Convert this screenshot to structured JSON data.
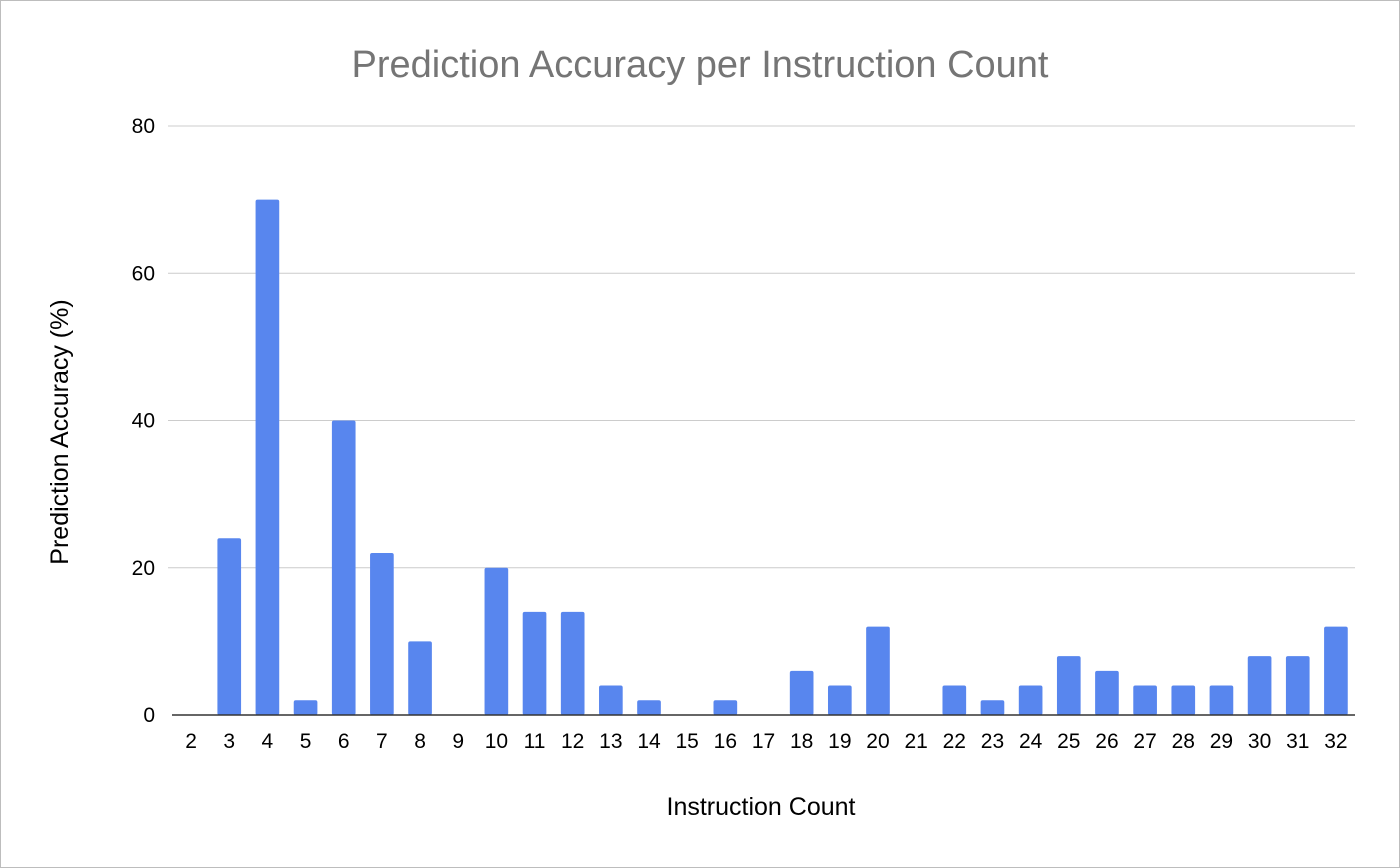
{
  "chart_data": {
    "type": "bar",
    "title": "Prediction Accuracy per Instruction Count",
    "xlabel": "Instruction Count",
    "ylabel": "Prediction Accuracy (%)",
    "ylim": [
      0,
      80
    ],
    "yticks": [
      0,
      20,
      40,
      60,
      80
    ],
    "grid": true,
    "legend": "none",
    "bar_color": "#5886ee",
    "categories": [
      "2",
      "3",
      "4",
      "5",
      "6",
      "7",
      "8",
      "9",
      "10",
      "11",
      "12",
      "13",
      "14",
      "15",
      "16",
      "17",
      "18",
      "19",
      "20",
      "21",
      "22",
      "23",
      "24",
      "25",
      "26",
      "27",
      "28",
      "29",
      "30",
      "31",
      "32"
    ],
    "values": [
      0,
      24,
      70,
      2,
      40,
      22,
      10,
      0,
      20,
      14,
      14,
      4,
      2,
      0,
      2,
      0,
      6,
      4,
      12,
      0,
      4,
      2,
      4,
      8,
      6,
      4,
      4,
      4,
      8,
      8,
      12
    ]
  }
}
